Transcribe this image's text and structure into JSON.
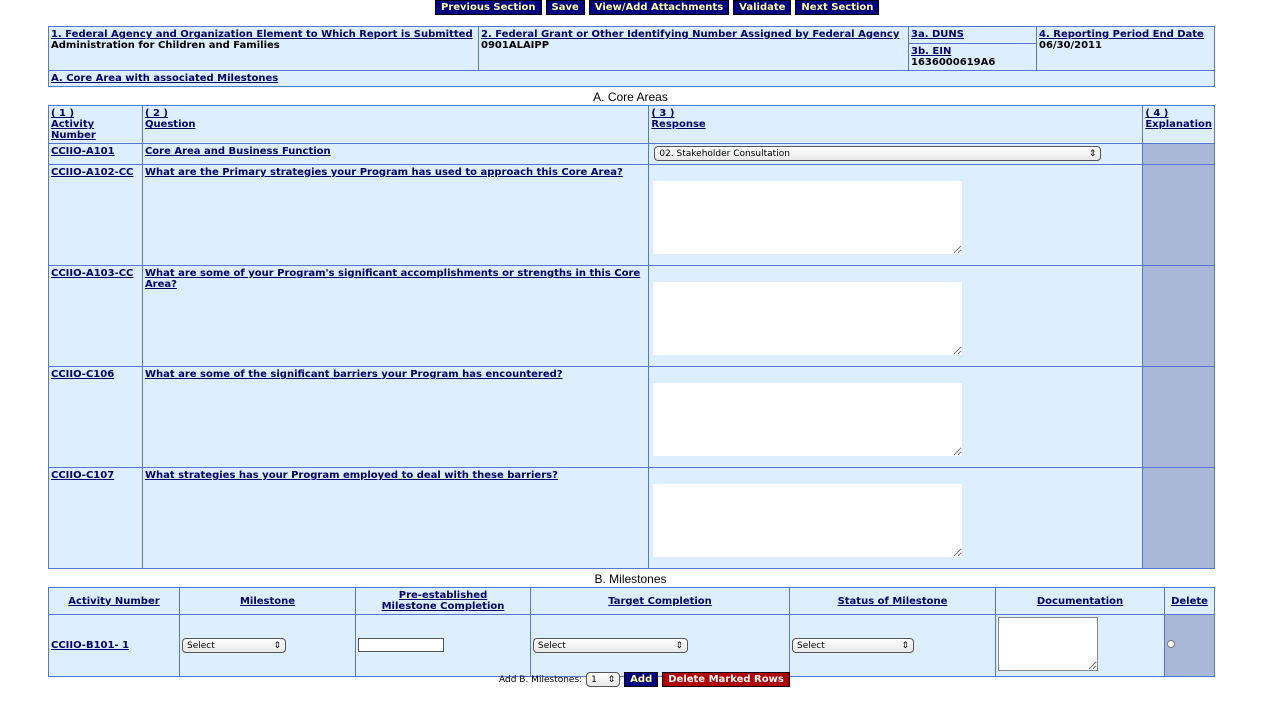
{
  "toolbar": {
    "previous": "Previous Section",
    "save": "Save",
    "attachments": "View/Add Attachments",
    "validate": "Validate",
    "next": "Next Section"
  },
  "header": {
    "agency_label": "1. Federal Agency and Organization Element to Which Report is Submitted",
    "agency_value": "Administration for Children and Families",
    "grant_label": "2. Federal Grant or Other Identifying Number Assigned by Federal Agency",
    "grant_value": "0901ALAIPP",
    "duns_label": "3a. DUNS",
    "duns_value": "",
    "ein_label": "3b. EIN",
    "ein_value": "1636000619A6",
    "period_label": "4. Reporting Period End Date",
    "period_value": "06/30/2011",
    "core_link": "A. Core Area with associated Milestones"
  },
  "core": {
    "title": "A. Core Areas",
    "columns": [
      {
        "num": "( 1 )",
        "label": "Activity Number"
      },
      {
        "num": "( 2 )",
        "label": "Question"
      },
      {
        "num": "( 3 )",
        "label": "Response"
      },
      {
        "num": "( 4 )",
        "label": "Explanation"
      }
    ],
    "first_row": {
      "activity": "CCIIO-A101",
      "question": "Core Area and Business Function",
      "response": "02. Stakeholder Consultation"
    },
    "rows": [
      {
        "activity": "CCIIO-A102-CC",
        "question": "What are the Primary strategies your Program has used to approach this Core Area?"
      },
      {
        "activity": "CCIIO-A103-CC",
        "question": "What are some of your Program's significant accomplishments or strengths in this Core Area?"
      },
      {
        "activity": "CCIIO-C106",
        "question": "What are some of the significant barriers your Program has encountered?"
      },
      {
        "activity": "CCIIO-C107",
        "question": "What strategies has your Program employed to deal with these barriers?"
      }
    ]
  },
  "milestones": {
    "title": "B. Milestones",
    "columns": [
      "Activity Number",
      "Milestone",
      "Pre-established",
      "Milestone Completion",
      "Target Completion",
      "Status of Milestone",
      "Documentation",
      "Delete"
    ],
    "row": {
      "activity": "CCIIO-B101- 1",
      "milestone": "Select",
      "target": "Select",
      "status": "Select"
    },
    "add_label": "Add B. Milestones:",
    "add_count": "1",
    "add_button": "Add",
    "delete_button": "Delete Marked Rows"
  }
}
